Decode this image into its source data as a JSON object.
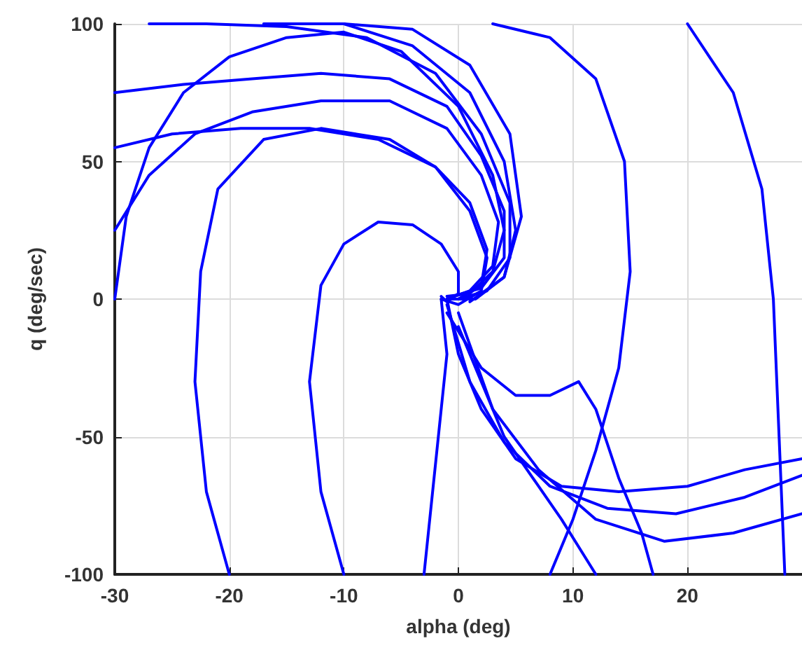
{
  "chart_data": {
    "type": "line",
    "xlabel": "alpha (deg)",
    "ylabel": "q (deg/sec)",
    "xlim": [
      -30,
      30
    ],
    "ylim": [
      -100,
      100
    ],
    "xticks": [
      -30,
      -20,
      -10,
      0,
      10,
      20
    ],
    "yticks": [
      -100,
      -50,
      0,
      50,
      100
    ],
    "grid": true,
    "marker": "none",
    "line_style": "solid",
    "series": [
      {
        "color": "#0000ff",
        "x": [
          -20,
          -22,
          -23,
          -22.5,
          -21,
          -17,
          -12,
          -6,
          -2,
          1,
          2.5,
          2,
          0,
          -1.5
        ],
        "values": [
          -100,
          -70,
          -30,
          10,
          40,
          58,
          62,
          58,
          48,
          32,
          15,
          3,
          -2,
          0
        ]
      },
      {
        "color": "#0000ff",
        "x": [
          -10,
          -12,
          -13,
          -12,
          -10,
          -7,
          -4,
          -1.5,
          0,
          0,
          -1,
          -1.5
        ],
        "values": [
          -100,
          -70,
          -30,
          5,
          20,
          28,
          27,
          20,
          10,
          2,
          -1,
          1
        ]
      },
      {
        "color": "#0000ff",
        "x": [
          -30,
          -29,
          -27,
          -24,
          -20,
          -15,
          -10,
          -5,
          0,
          3,
          4,
          3,
          1,
          -1
        ],
        "values": [
          0,
          30,
          55,
          75,
          88,
          95,
          97,
          90,
          70,
          45,
          25,
          10,
          2,
          1
        ]
      },
      {
        "color": "#0000ff",
        "x": [
          -30,
          -27,
          -23,
          -18,
          -12,
          -6,
          -1,
          2,
          3.5,
          3,
          1,
          -1
        ],
        "values": [
          25,
          45,
          60,
          68,
          72,
          72,
          62,
          45,
          28,
          12,
          3,
          0
        ]
      },
      {
        "color": "#0000ff",
        "x": [
          -30,
          -25,
          -19,
          -13,
          -7,
          -2,
          1,
          2.5,
          2,
          0
        ],
        "values": [
          55,
          60,
          62,
          62,
          58,
          48,
          35,
          18,
          5,
          0
        ]
      },
      {
        "color": "#0000ff",
        "x": [
          -30,
          -24,
          -18,
          -12,
          -6,
          -1,
          2,
          4,
          4,
          2,
          -0.5
        ],
        "values": [
          75,
          78,
          80,
          82,
          80,
          70,
          52,
          32,
          15,
          4,
          1
        ]
      },
      {
        "color": "#0000ff",
        "x": [
          -27,
          -22,
          -15,
          -8,
          -2,
          2,
          4.5,
          4.5,
          2.5,
          0
        ],
        "values": [
          100,
          100,
          99,
          95,
          82,
          60,
          35,
          15,
          3,
          0
        ]
      },
      {
        "color": "#0000ff",
        "x": [
          -17,
          -10,
          -4,
          1,
          4,
          5,
          4,
          1.5,
          -1
        ],
        "values": [
          100,
          100,
          92,
          75,
          50,
          25,
          8,
          0,
          0
        ]
      },
      {
        "color": "#0000ff",
        "x": [
          -10,
          -4,
          1,
          4.5,
          5.5,
          4,
          1
        ],
        "values": [
          100,
          98,
          85,
          60,
          30,
          8,
          -1
        ]
      },
      {
        "color": "#0000ff",
        "x": [
          3,
          8,
          12,
          14.5,
          15,
          14,
          12,
          10,
          8
        ],
        "values": [
          100,
          95,
          80,
          50,
          10,
          -25,
          -55,
          -80,
          -100
        ]
      },
      {
        "color": "#0000ff",
        "x": [
          20,
          24,
          26.5,
          27.5,
          28,
          28.5
        ],
        "values": [
          100,
          75,
          40,
          0,
          -50,
          -100
        ]
      },
      {
        "color": "#0000ff",
        "x": [
          -1,
          0,
          2,
          5,
          9,
          14,
          20,
          25,
          30
        ],
        "values": [
          0,
          -20,
          -40,
          -58,
          -68,
          -70,
          -68,
          -62,
          -58
        ]
      },
      {
        "color": "#0000ff",
        "x": [
          -1,
          1,
          4,
          8,
          13,
          19,
          25,
          30
        ],
        "values": [
          -2,
          -30,
          -52,
          -68,
          -76,
          -78,
          -72,
          -64
        ]
      },
      {
        "color": "#0000ff",
        "x": [
          0,
          3,
          7,
          12,
          18,
          24,
          30
        ],
        "values": [
          -5,
          -40,
          -62,
          -80,
          -88,
          -85,
          -78
        ]
      },
      {
        "color": "#0000ff",
        "x": [
          0,
          4,
          9,
          12
        ],
        "values": [
          -10,
          -50,
          -80,
          -100
        ]
      },
      {
        "color": "#0000ff",
        "x": [
          -1,
          2,
          5,
          8,
          10.5,
          12,
          14,
          16,
          17
        ],
        "values": [
          -5,
          -25,
          -35,
          -35,
          -30,
          -40,
          -65,
          -85,
          -100
        ]
      },
      {
        "color": "#0000ff",
        "x": [
          -3,
          -2,
          -1,
          -1.5
        ],
        "values": [
          -100,
          -60,
          -20,
          0
        ]
      }
    ]
  }
}
